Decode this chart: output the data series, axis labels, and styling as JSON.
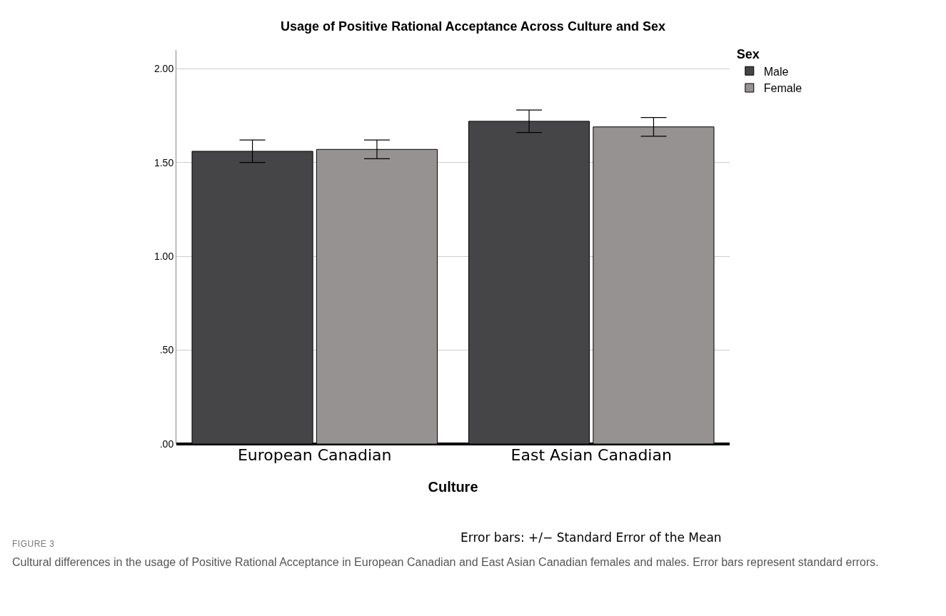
{
  "chart_data": {
    "type": "bar",
    "title": "Usage of Positive Rational Acceptance Across Culture and Sex",
    "xlabel": "Culture",
    "legend_title": "Sex",
    "categories": [
      "European Canadian",
      "East Asian Canadian"
    ],
    "series": [
      {
        "name": "Male",
        "color": "#454547",
        "values": [
          1.56,
          1.72
        ],
        "errors": [
          0.06,
          0.06
        ]
      },
      {
        "name": "Female",
        "color": "#969291",
        "values": [
          1.57,
          1.69
        ],
        "errors": [
          0.05,
          0.05
        ]
      }
    ],
    "ylim": [
      0,
      2.1
    ],
    "yticks": [
      {
        "value": 0,
        "label": ".00"
      },
      {
        "value": 0.5,
        "label": ".50"
      },
      {
        "value": 1,
        "label": "1.00"
      },
      {
        "value": 1.5,
        "label": "1.50"
      },
      {
        "value": 2,
        "label": "2.00"
      }
    ],
    "grid": "y",
    "legend": "top right",
    "annotations": [
      "Error bars: +/− Standard Error of the Mean",
      "FIGURE 3",
      "Cultural differences in the usage of Positive Rational Acceptance in European Canadian and East Asian Canadian females and males. Error bars represent standard errors."
    ]
  }
}
